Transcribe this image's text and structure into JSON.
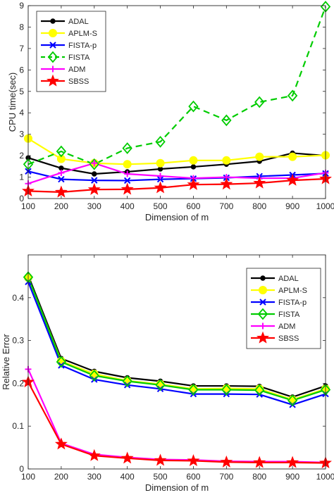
{
  "chart_data": [
    {
      "type": "line",
      "xlabel": "Dimension of m",
      "ylabel": "CPU time(sec)",
      "x": [
        100,
        200,
        300,
        400,
        500,
        600,
        700,
        800,
        900,
        1000
      ],
      "xlim": [
        100,
        1000
      ],
      "ylim": [
        0,
        9
      ],
      "xticks": [
        "100",
        "200",
        "300",
        "400",
        "500",
        "600",
        "700",
        "800",
        "900",
        "1000"
      ],
      "yticks": [
        "0",
        "1",
        "2",
        "3",
        "4",
        "5",
        "6",
        "7",
        "8",
        "9"
      ],
      "legend_position": "top-left",
      "series": [
        {
          "name": "ADAL",
          "color": "#000000",
          "marker": "dot",
          "dash": "solid",
          "values": [
            1.9,
            1.42,
            1.15,
            1.25,
            1.38,
            1.48,
            1.6,
            1.74,
            2.12,
            2.0
          ]
        },
        {
          "name": "APLM-S",
          "color": "#ffff00",
          "marker": "circle",
          "dash": "solid",
          "values": [
            2.8,
            1.85,
            1.65,
            1.6,
            1.65,
            1.78,
            1.78,
            1.95,
            1.95,
            2.02
          ]
        },
        {
          "name": "FISTA-p",
          "color": "#0000ff",
          "marker": "x",
          "dash": "solid",
          "values": [
            1.27,
            0.9,
            0.85,
            0.84,
            0.9,
            0.93,
            0.97,
            1.04,
            1.1,
            1.17
          ]
        },
        {
          "name": "FISTA",
          "color": "#00cc00",
          "marker": "diamond",
          "dash": "dashed",
          "values": [
            1.6,
            2.2,
            1.6,
            2.35,
            2.65,
            4.3,
            3.65,
            4.5,
            4.8,
            8.95
          ]
        },
        {
          "name": "ADM",
          "color": "#ff00ff",
          "marker": "plus",
          "dash": "solid",
          "values": [
            0.7,
            1.2,
            1.65,
            1.15,
            1.05,
            0.95,
            1.0,
            0.95,
            0.95,
            1.2
          ]
        },
        {
          "name": "SBSS",
          "color": "#ff0000",
          "marker": "star",
          "dash": "solid",
          "values": [
            0.35,
            0.3,
            0.42,
            0.43,
            0.5,
            0.65,
            0.67,
            0.72,
            0.85,
            0.92
          ]
        }
      ]
    },
    {
      "type": "line",
      "xlabel": "Dimension of m",
      "ylabel": "Relative Error",
      "x": [
        100,
        200,
        300,
        400,
        500,
        600,
        700,
        800,
        900,
        1000
      ],
      "xlim": [
        100,
        1000
      ],
      "ylim": [
        0,
        0.5
      ],
      "xticks": [
        "100",
        "200",
        "300",
        "400",
        "500",
        "600",
        "700",
        "800",
        "900",
        "1000"
      ],
      "yticks": [
        "0",
        "0.1",
        "0.2",
        "0.3",
        "0.4"
      ],
      "legend_position": "top-right",
      "series": [
        {
          "name": "ADAL",
          "color": "#000000",
          "marker": "dot",
          "dash": "solid",
          "values": [
            0.452,
            0.258,
            0.228,
            0.213,
            0.205,
            0.194,
            0.194,
            0.193,
            0.168,
            0.194
          ]
        },
        {
          "name": "APLM-S",
          "color": "#ffff00",
          "marker": "circle",
          "dash": "solid",
          "values": [
            0.447,
            0.252,
            0.222,
            0.206,
            0.198,
            0.187,
            0.188,
            0.187,
            0.162,
            0.187
          ]
        },
        {
          "name": "FISTA-p",
          "color": "#0000ff",
          "marker": "x",
          "dash": "solid",
          "values": [
            0.437,
            0.242,
            0.209,
            0.196,
            0.187,
            0.175,
            0.175,
            0.174,
            0.15,
            0.175
          ]
        },
        {
          "name": "FISTA",
          "color": "#00cc00",
          "marker": "diamond",
          "dash": "solid",
          "values": [
            0.448,
            0.25,
            0.218,
            0.205,
            0.196,
            0.185,
            0.185,
            0.184,
            0.16,
            0.185
          ]
        },
        {
          "name": "ADM",
          "color": "#ff00ff",
          "marker": "plus",
          "dash": "solid",
          "values": [
            0.233,
            0.06,
            0.034,
            0.027,
            0.022,
            0.021,
            0.018,
            0.017,
            0.017,
            0.015
          ]
        },
        {
          "name": "SBSS",
          "color": "#ff0000",
          "marker": "star",
          "dash": "solid",
          "values": [
            0.203,
            0.058,
            0.031,
            0.025,
            0.02,
            0.019,
            0.016,
            0.015,
            0.015,
            0.014
          ]
        }
      ]
    }
  ]
}
